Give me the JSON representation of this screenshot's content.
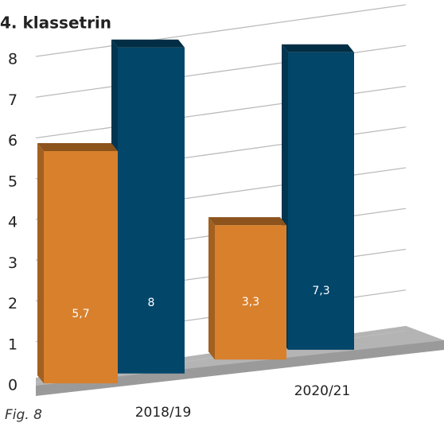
{
  "chart_data": {
    "type": "bar3d",
    "title": "4. klassetrin",
    "caption": "Fig. 8",
    "categories": [
      "2018/19",
      "2020/21"
    ],
    "series": [
      {
        "color": "#d8802c",
        "values": [
          5.7,
          3.3
        ],
        "value_labels": [
          "5,7",
          "3,3"
        ]
      },
      {
        "color": "#02466a",
        "values": [
          8,
          7.3
        ],
        "value_labels": [
          "8",
          "7,3"
        ]
      }
    ],
    "ylim": [
      0,
      8
    ],
    "yticks": [
      0,
      1,
      2,
      3,
      4,
      5,
      6,
      7,
      8
    ],
    "grid": true
  }
}
